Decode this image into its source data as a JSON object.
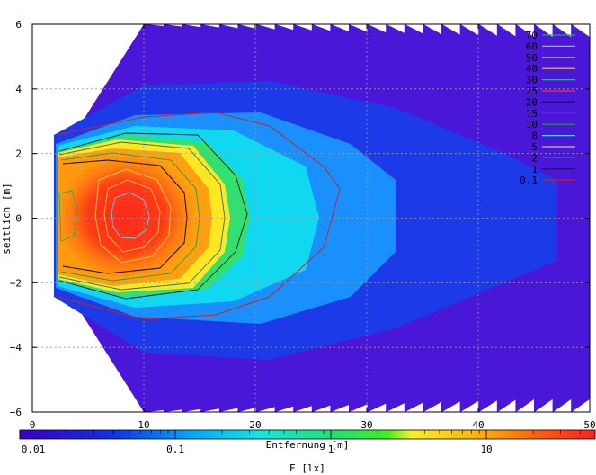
{
  "chart_data": {
    "type": "heatmap",
    "title": "",
    "xlabel": "Entfernung [m]",
    "ylabel": "seitlich [m]",
    "colorbar_label": "E [lx]",
    "xlim": [
      0,
      50
    ],
    "ylim": [
      -6,
      6
    ],
    "x_ticks": [
      "0",
      "10",
      "20",
      "30",
      "40",
      "50"
    ],
    "y_ticks": [
      "6",
      "4",
      "2",
      "0",
      "−2",
      "−4",
      "−6"
    ],
    "colorbar_scale": "log",
    "colorbar_range": [
      0.01,
      50
    ],
    "colorbar_ticks": [
      "0.01",
      "0.1",
      "1",
      "10"
    ],
    "grid": true,
    "legend_position": "top-right",
    "contour_levels": [
      {
        "label": "70",
        "color": "#2fa84f"
      },
      {
        "label": "60",
        "color": "#55d8ff"
      },
      {
        "label": "50",
        "color": "#ffb43c"
      },
      {
        "label": "40",
        "color": "#f4c838"
      },
      {
        "label": "30",
        "color": "#3fa0a0"
      },
      {
        "label": "25",
        "color": "#ff3030"
      },
      {
        "label": "20",
        "color": "#101010"
      },
      {
        "label": "15",
        "color": "#7a22d6"
      },
      {
        "label": "10",
        "color": "#2a9a3a"
      },
      {
        "label": "8",
        "color": "#40e0ff"
      },
      {
        "label": "5",
        "color": "#d8c070"
      },
      {
        "label": "2",
        "color": "#207070"
      },
      {
        "label": "1",
        "color": "#1a1a1a"
      },
      {
        "label": "0.1",
        "color": "#d02020"
      }
    ]
  }
}
